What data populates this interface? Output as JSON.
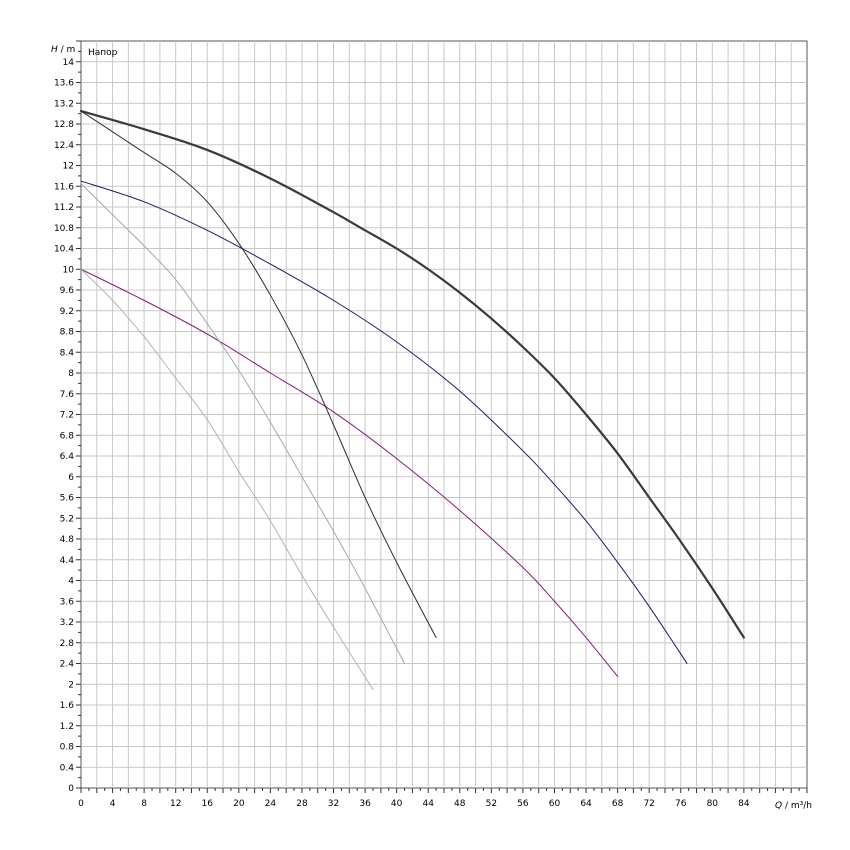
{
  "chart_data": {
    "type": "line",
    "header_label": "Напор",
    "ylabel_var": "H",
    "ylabel_unit": " / m",
    "xlabel_var": "Q",
    "xlabel_unit": " / m³/h",
    "xlim": [
      0,
      92
    ],
    "ylim": [
      0,
      14.4
    ],
    "x_ticks": [
      0,
      4,
      8,
      12,
      16,
      20,
      24,
      28,
      32,
      36,
      40,
      44,
      48,
      52,
      56,
      60,
      64,
      68,
      72,
      76,
      80,
      84
    ],
    "y_ticks": [
      0,
      0.4,
      0.8,
      1.2,
      1.6,
      2,
      2.4,
      2.8,
      3.2,
      3.6,
      4,
      4.4,
      4.8,
      5.2,
      5.6,
      6,
      6.4,
      6.8,
      7.2,
      7.6,
      8,
      8.4,
      8.8,
      9.2,
      9.6,
      10,
      10.4,
      10.8,
      11.2,
      11.6,
      12,
      12.4,
      12.8,
      13.2,
      13.6,
      14
    ],
    "grid": true,
    "series": [
      {
        "color": "#3a3a3a",
        "width": 2.2,
        "x": [
          0,
          8,
          16,
          24,
          32,
          36,
          40,
          44,
          48,
          52,
          56,
          60,
          64,
          68,
          72,
          76,
          80,
          84
        ],
        "y": [
          13.05,
          12.7,
          12.3,
          11.75,
          11.1,
          10.75,
          10.4,
          10.0,
          9.55,
          9.05,
          8.5,
          7.9,
          7.2,
          6.45,
          5.6,
          4.75,
          3.85,
          2.9
        ]
      },
      {
        "color": "#1a1a6e",
        "width": 1,
        "x": [
          0,
          8,
          16,
          24,
          32,
          40,
          48,
          56,
          60,
          64,
          68,
          72,
          76.8
        ],
        "y": [
          11.7,
          11.3,
          10.75,
          10.1,
          9.4,
          8.6,
          7.65,
          6.5,
          5.85,
          5.15,
          4.35,
          3.5,
          2.4
        ]
      },
      {
        "color": "#8a1a7a",
        "width": 1,
        "x": [
          0,
          8,
          16,
          24,
          32,
          40,
          48,
          56,
          60,
          64,
          68
        ],
        "y": [
          10.0,
          9.4,
          8.75,
          8.0,
          7.25,
          6.35,
          5.35,
          4.25,
          3.6,
          2.9,
          2.15
        ]
      },
      {
        "color": "#2e2e2e",
        "width": 1,
        "x": [
          0,
          4,
          8,
          12,
          16,
          20,
          24,
          28,
          32,
          36,
          40,
          45
        ],
        "y": [
          13.05,
          12.65,
          12.25,
          11.85,
          11.3,
          10.5,
          9.5,
          8.35,
          7.0,
          5.6,
          4.35,
          2.9
        ]
      },
      {
        "color": "#a8a8a8",
        "width": 1,
        "x": [
          0,
          4,
          8,
          12,
          16,
          20,
          24,
          28,
          32,
          36,
          41
        ],
        "y": [
          11.65,
          11.05,
          10.45,
          9.8,
          8.95,
          8.05,
          7.05,
          6.0,
          4.95,
          3.85,
          2.4
        ]
      },
      {
        "color": "#b4b4b4",
        "width": 1,
        "x": [
          0,
          4,
          8,
          12,
          16,
          20,
          24,
          28,
          32,
          37
        ],
        "y": [
          10.0,
          9.4,
          8.7,
          7.9,
          7.1,
          6.1,
          5.15,
          4.1,
          3.1,
          1.9
        ]
      }
    ]
  }
}
